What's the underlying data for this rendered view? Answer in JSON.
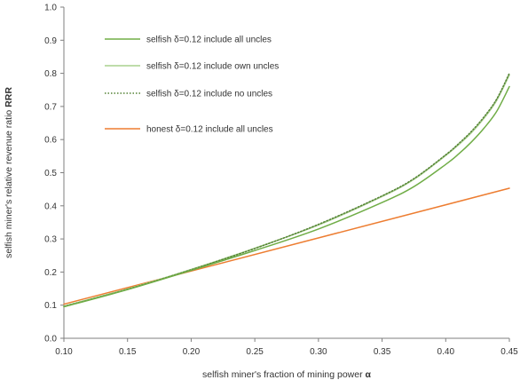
{
  "chart_data": {
    "type": "line",
    "xlabel": "selfish miner's fraction of mining power",
    "xlabel_symbol": "α",
    "ylabel": "selfish miner's relative revenue ratio",
    "ylabel_symbol": "RRR",
    "xlim": [
      0.1,
      0.45
    ],
    "ylim": [
      0.0,
      1.0
    ],
    "x_ticks": [
      "0.10",
      "0.15",
      "0.20",
      "0.25",
      "0.30",
      "0.35",
      "0.40",
      "0.45"
    ],
    "y_ticks": [
      "0.0",
      "0.1",
      "0.2",
      "0.3",
      "0.4",
      "0.5",
      "0.6",
      "0.7",
      "0.8",
      "0.9",
      "1.0"
    ],
    "grid": false,
    "legend_position": "top-left",
    "series": [
      {
        "name": "selfish δ=0.12 include all uncles",
        "color": "#70ad47",
        "style": "solid",
        "x": [
          0.1,
          0.15,
          0.2,
          0.25,
          0.3,
          0.35,
          0.375,
          0.4,
          0.41,
          0.42,
          0.43,
          0.44,
          0.45
        ],
        "y": [
          0.095,
          0.147,
          0.205,
          0.265,
          0.33,
          0.41,
          0.458,
          0.525,
          0.556,
          0.592,
          0.634,
          0.685,
          0.76
        ]
      },
      {
        "name": "selfish δ=0.12 include own uncles",
        "color": "#a9d18e",
        "style": "solid",
        "x": [
          0.1,
          0.15,
          0.2,
          0.25,
          0.3,
          0.35,
          0.375,
          0.4,
          0.41,
          0.42,
          0.43,
          0.44,
          0.45
        ],
        "y": [
          0.097,
          0.149,
          0.208,
          0.272,
          0.342,
          0.428,
          0.48,
          0.552,
          0.584,
          0.62,
          0.664,
          0.718,
          0.795
        ]
      },
      {
        "name": "selfish δ=0.12 include no uncles",
        "color": "#548235",
        "style": "dotted",
        "x": [
          0.1,
          0.15,
          0.2,
          0.25,
          0.3,
          0.35,
          0.375,
          0.4,
          0.41,
          0.42,
          0.43,
          0.44,
          0.45
        ],
        "y": [
          0.096,
          0.148,
          0.207,
          0.271,
          0.344,
          0.43,
          0.482,
          0.554,
          0.587,
          0.624,
          0.668,
          0.722,
          0.8
        ]
      },
      {
        "name": "honest δ=0.12 include all uncles",
        "color": "#ed7d31",
        "style": "solid",
        "x": [
          0.1,
          0.45
        ],
        "y": [
          0.103,
          0.453
        ]
      }
    ]
  }
}
